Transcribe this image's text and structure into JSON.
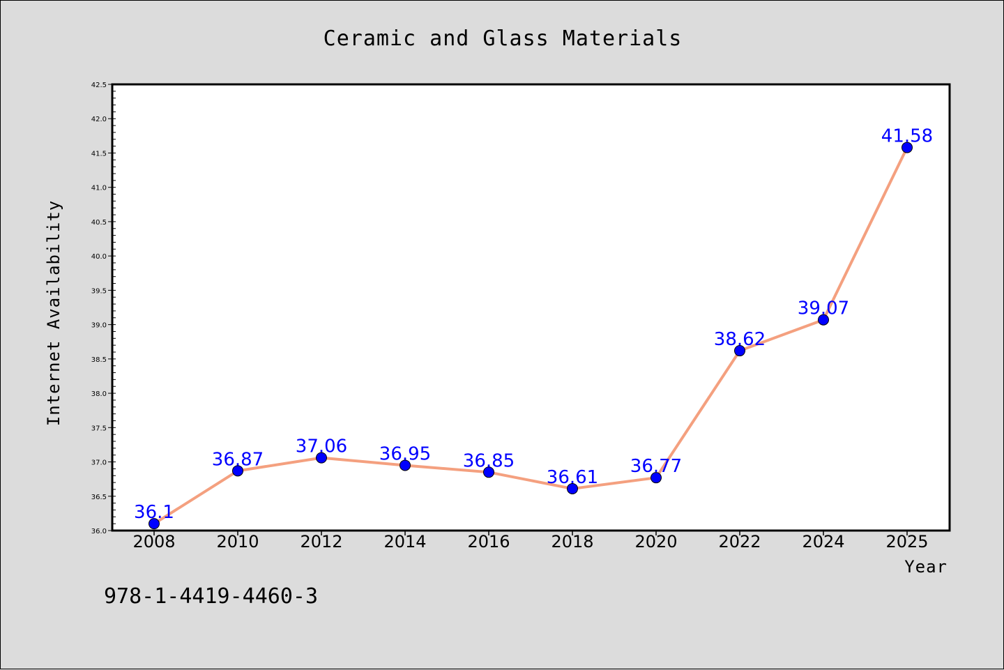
{
  "chart_data": {
    "type": "line",
    "title": "Ceramic and Glass Materials",
    "xlabel": "Year",
    "ylabel": "Internet Availability",
    "categories": [
      "2008",
      "2010",
      "2012",
      "2014",
      "2016",
      "2018",
      "2020",
      "2022",
      "2024",
      "2025"
    ],
    "series": [
      {
        "values": [
          36.1,
          36.87,
          37.06,
          36.95,
          36.85,
          36.61,
          36.77,
          38.62,
          39.07,
          41.58
        ]
      }
    ],
    "data_labels": [
      "36.1",
      "36.87",
      "37.06",
      "36.95",
      "36.85",
      "36.61",
      "36.77",
      "38.62",
      "39.07",
      "41.58"
    ],
    "ylim": [
      36.0,
      42.5
    ],
    "yticks": [
      "36.0",
      "36.5",
      "37.0",
      "37.5",
      "38.0",
      "38.5",
      "39.0",
      "39.5",
      "40.0",
      "40.5",
      "41.0",
      "41.5",
      "42.0",
      "42.5"
    ],
    "grid": false,
    "line_color": "#f4a07f",
    "marker_color": "#0000ff",
    "label_color": "#0000ff"
  },
  "footnote": "978-1-4419-4460-3"
}
